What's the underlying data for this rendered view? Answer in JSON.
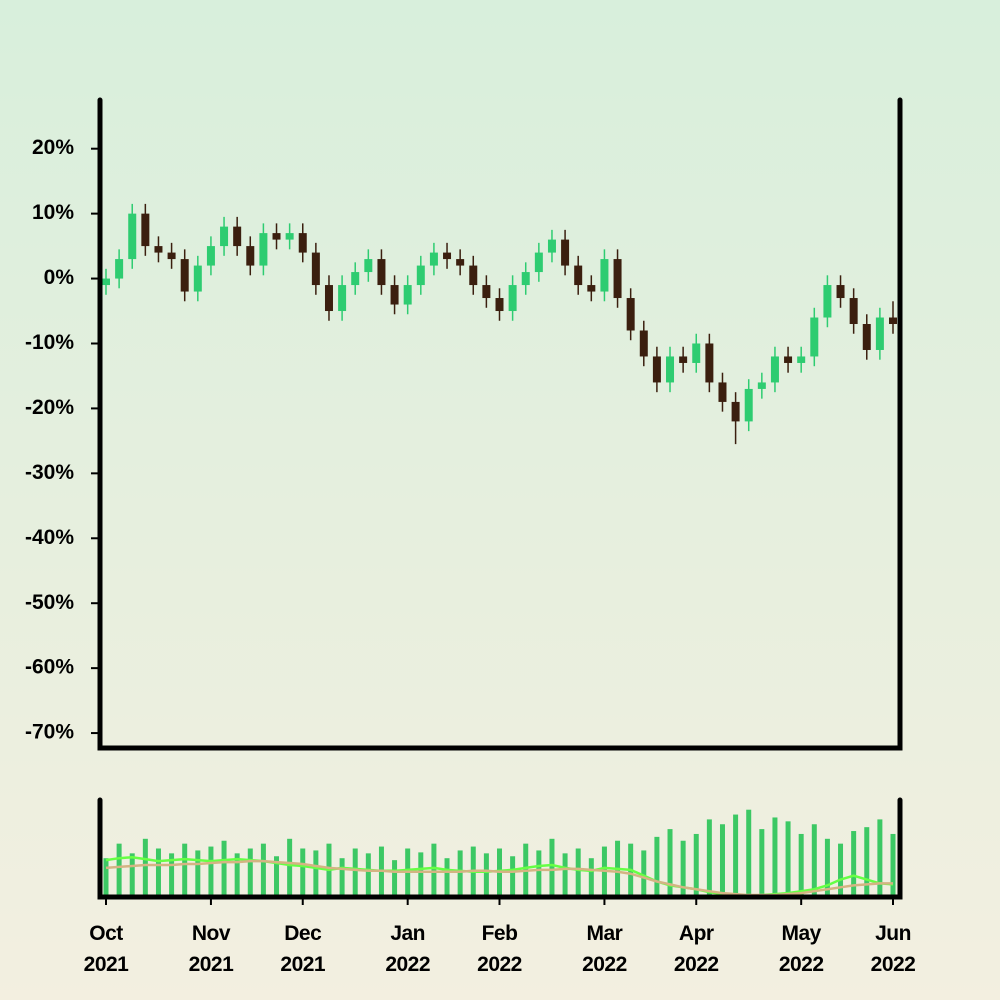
{
  "chart_data": {
    "type": "candlestick",
    "categories": [
      "Oct 2021",
      null,
      null,
      null,
      null,
      null,
      null,
      null,
      "Nov 2021",
      null,
      null,
      null,
      null,
      null,
      null,
      "Dec 2021",
      null,
      null,
      null,
      null,
      null,
      null,
      null,
      "Jan 2022",
      null,
      null,
      null,
      null,
      null,
      null,
      "Feb 2022",
      null,
      null,
      null,
      null,
      null,
      null,
      null,
      "Mar 2022",
      null,
      null,
      null,
      null,
      null,
      null,
      "Apr 2022",
      null,
      null,
      null,
      null,
      null,
      null,
      null,
      "May 2022",
      null,
      null,
      null,
      null,
      null,
      null,
      "Jun 2022"
    ],
    "open": [
      -1,
      0,
      3,
      10,
      5,
      4,
      3,
      -2,
      2,
      5,
      8,
      5,
      2,
      7,
      6,
      7,
      4,
      -1,
      -5,
      -1,
      1,
      3,
      -1,
      -4,
      -1,
      2,
      4,
      3,
      2,
      -1,
      -3,
      -5,
      -1,
      1,
      4,
      6,
      2,
      -1,
      -2,
      3,
      -3,
      -8,
      -12,
      -16,
      -12,
      -13,
      -10,
      -16,
      -19,
      -22,
      -17,
      -16,
      -12,
      -13,
      -12,
      -6,
      -1,
      -3,
      -7,
      -11,
      -6
    ],
    "high": [
      1.5,
      4.5,
      11.5,
      11.5,
      6.5,
      5.5,
      4.5,
      3.5,
      6.5,
      9.5,
      9.5,
      6.5,
      8.5,
      8.5,
      8.5,
      8.5,
      5.5,
      0.5,
      0.5,
      2.5,
      4.5,
      4.5,
      0.5,
      0.5,
      3.5,
      5.5,
      5.5,
      4.5,
      3.5,
      0.5,
      -1.5,
      0.5,
      2.5,
      5.5,
      7.5,
      7.5,
      3.5,
      0.5,
      4.5,
      4.5,
      -1.5,
      -6.5,
      -10.5,
      -10.5,
      -10.5,
      -8.5,
      -8.5,
      -14.5,
      -17.5,
      -15.5,
      -14.5,
      -10.5,
      -10.5,
      -10.5,
      -4.5,
      0.5,
      0.5,
      -1.5,
      -5.5,
      -4.5,
      -3.5
    ],
    "low": [
      -2.5,
      -1.5,
      1.5,
      3.5,
      2.5,
      1.5,
      -3.5,
      -3.5,
      0.5,
      3.5,
      3.5,
      0.5,
      0.5,
      4.5,
      4.5,
      2.5,
      -2.5,
      -6.5,
      -6.5,
      -2.5,
      -0.5,
      -2.5,
      -5.5,
      -5.5,
      -2.5,
      0.5,
      1.5,
      0.5,
      -2.5,
      -4.5,
      -6.5,
      -6.5,
      -2.5,
      -0.5,
      2.5,
      0.5,
      -2.5,
      -3.5,
      -3.5,
      -4.5,
      -9.5,
      -13.5,
      -17.5,
      -17.5,
      -14.5,
      -14.5,
      -17.5,
      -20.5,
      -25.5,
      -23.5,
      -18.5,
      -17.5,
      -14.5,
      -14.5,
      -13.5,
      -7.5,
      -4.5,
      -8.5,
      -12.5,
      -12.5,
      -8.5
    ],
    "close": [
      0,
      3,
      10,
      5,
      4,
      3,
      -2,
      2,
      5,
      8,
      5,
      2,
      7,
      6,
      7,
      4,
      -1,
      -5,
      -1,
      1,
      3,
      -1,
      -4,
      -1,
      2,
      4,
      3,
      2,
      -1,
      -3,
      -5,
      -1,
      1,
      4,
      6,
      2,
      -1,
      -2,
      3,
      -3,
      -8,
      -12,
      -16,
      -12,
      -13,
      -10,
      -16,
      -19,
      -22,
      -17,
      -16,
      -12,
      -13,
      -12,
      -6,
      -1,
      -3,
      -7,
      -11,
      -6,
      -7
    ],
    "up_color": "#2ecc71",
    "down_color": "#3b1f0f",
    "ylim": [
      -72.3,
      27.5
    ],
    "yticks": [
      {
        "value": 20,
        "label": "20%"
      },
      {
        "value": 10,
        "label": "10%"
      },
      {
        "value": 0,
        "label": "0%"
      },
      {
        "value": -10,
        "label": "-10%"
      },
      {
        "value": -20,
        "label": "-20%"
      },
      {
        "value": -30,
        "label": "-30%"
      },
      {
        "value": -40,
        "label": "-40%"
      },
      {
        "value": -50,
        "label": "-50%"
      },
      {
        "value": -60,
        "label": "-60%"
      },
      {
        "value": -70,
        "label": "-70%"
      }
    ],
    "volume": {
      "ylim": [
        0,
        100
      ],
      "color": "#3cc864",
      "values": [
        40,
        55,
        45,
        60,
        50,
        45,
        55,
        48,
        52,
        58,
        45,
        50,
        55,
        42,
        60,
        50,
        48,
        55,
        40,
        50,
        45,
        52,
        38,
        50,
        46,
        55,
        40,
        48,
        52,
        45,
        50,
        42,
        55,
        48,
        60,
        45,
        50,
        40,
        52,
        58,
        55,
        48,
        62,
        70,
        58,
        65,
        80,
        75,
        85,
        90,
        70,
        82,
        78,
        65,
        75,
        60,
        55,
        68,
        72,
        80,
        65
      ],
      "series": [
        {
          "color": "#66ff44",
          "values": [
            38,
            40,
            41,
            39,
            37,
            38,
            39,
            38,
            37,
            38,
            39,
            38,
            37,
            35,
            33,
            32,
            30,
            28,
            30,
            29,
            28,
            27,
            27,
            28,
            29,
            30,
            28,
            27,
            26,
            26,
            27,
            28,
            30,
            32,
            33,
            30,
            28,
            27,
            30,
            29,
            28,
            22,
            16,
            12,
            10,
            8,
            5,
            3,
            2,
            1,
            2,
            3,
            4,
            6,
            8,
            12,
            18,
            22,
            18,
            14,
            13
          ]
        },
        {
          "color": "#d4b483",
          "values": [
            30,
            31,
            32,
            33,
            33,
            33,
            34,
            34,
            35,
            36,
            36,
            37,
            37,
            36,
            35,
            34,
            32,
            30,
            29,
            28,
            27,
            27,
            26,
            26,
            26,
            26,
            26,
            26,
            27,
            27,
            26,
            26,
            27,
            28,
            28,
            29,
            29,
            28,
            27,
            26,
            24,
            20,
            16,
            13,
            10,
            8,
            6,
            4,
            3,
            2,
            2,
            2,
            3,
            4,
            6,
            8,
            10,
            12,
            13,
            14,
            14
          ]
        }
      ]
    }
  }
}
